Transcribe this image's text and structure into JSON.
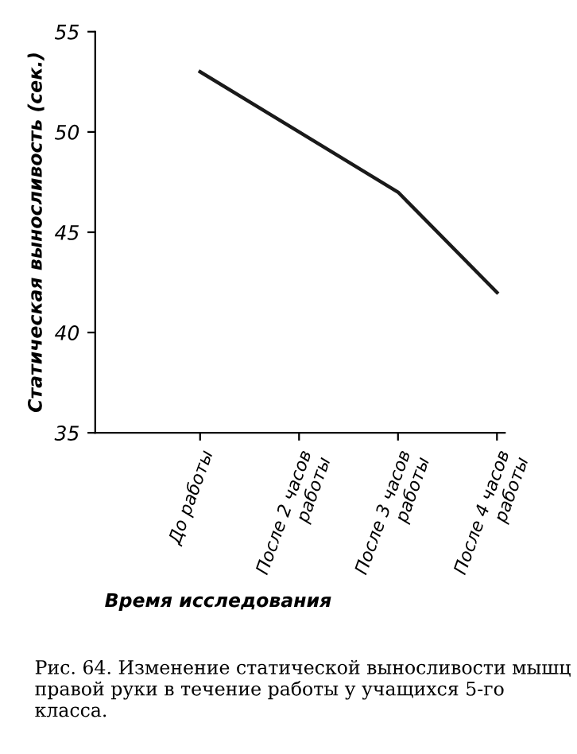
{
  "chart_data": {
    "type": "line",
    "ylabel": "Статическая выносливость (сек.)",
    "xlabel": "Время исследования",
    "categories": [
      "До работы",
      "После 2 часов\nработы",
      "После 3 часов\nработы",
      "После 4 часов\nработы"
    ],
    "series": [
      {
        "color": "#1a1a1a",
        "values": [
          53,
          50,
          47,
          42
        ]
      }
    ],
    "ylim": [
      35,
      55
    ],
    "yticks": [
      35,
      40,
      45,
      50,
      55
    ],
    "grid": false,
    "marker": "none",
    "line_style": "solid",
    "annotations": [
      "Рис. 64. Изменение статической выносливости мышц правой руки в течение работы у учащихся 5-го класса."
    ]
  }
}
